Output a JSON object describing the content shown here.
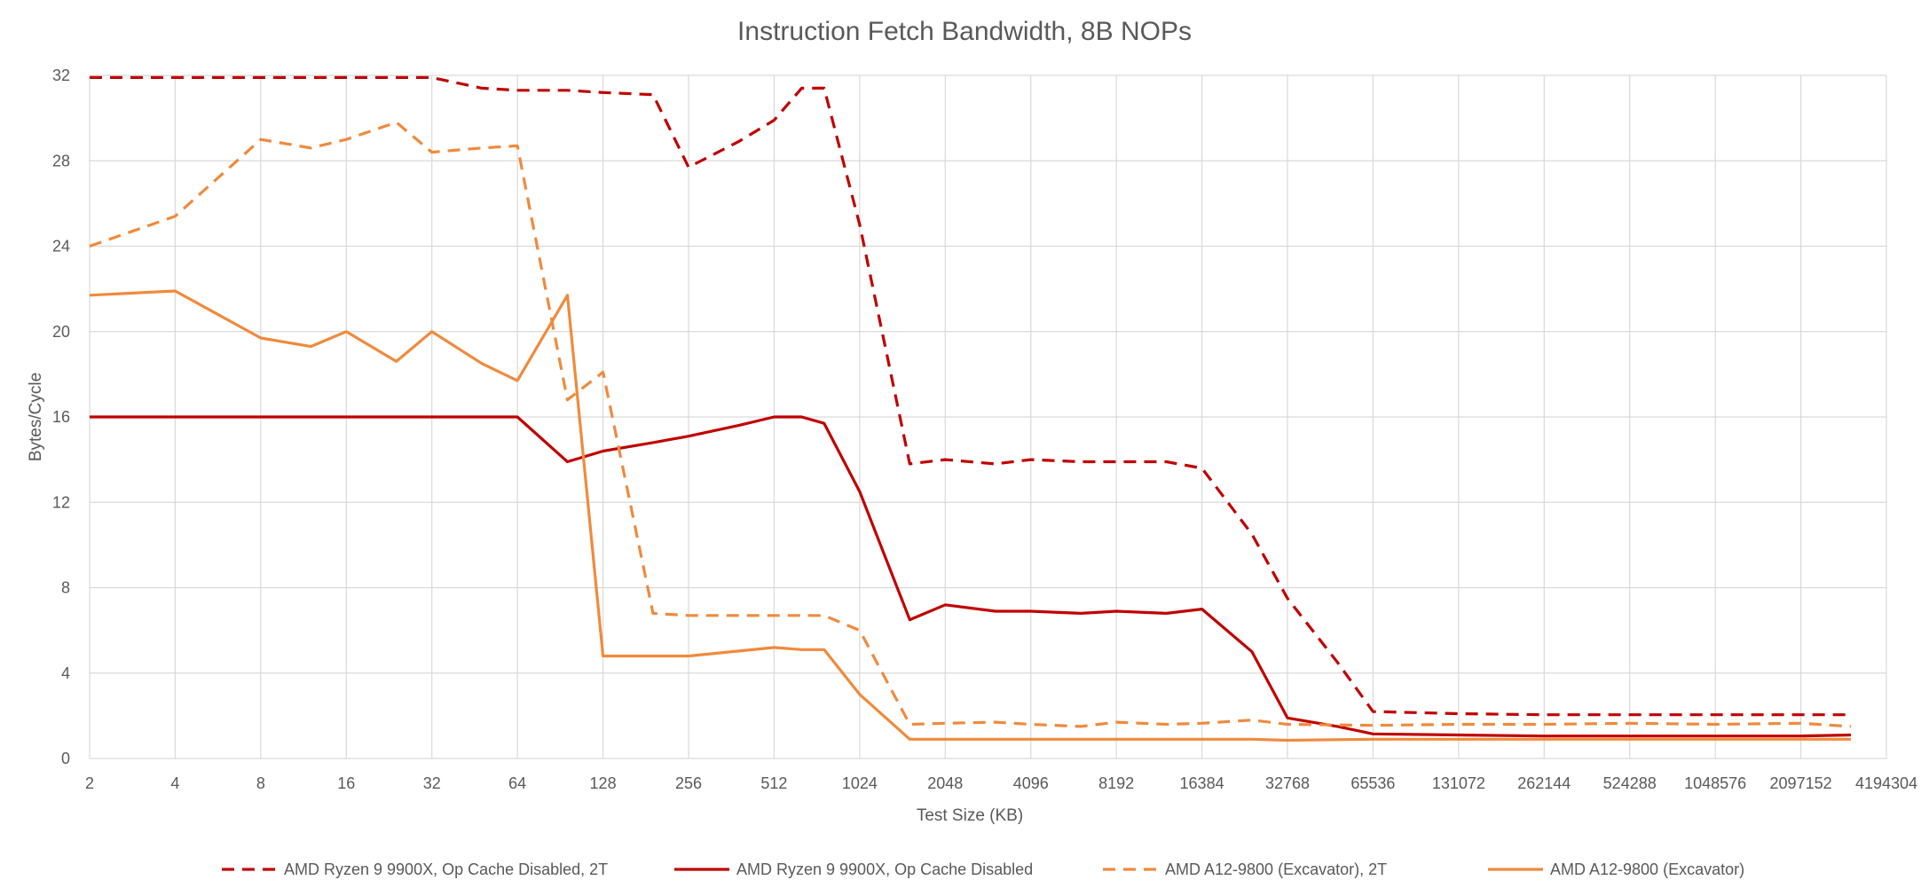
{
  "chart_data": {
    "type": "line",
    "title": "Instruction Fetch Bandwidth, 8B NOPs",
    "xlabel": "Test Size (KB)",
    "ylabel": "Bytes/Cycle",
    "x_scale": "log2",
    "xlim": [
      2,
      4194304
    ],
    "ylim": [
      0,
      32
    ],
    "y_ticks": [
      "0",
      "4",
      "8",
      "12",
      "16",
      "20",
      "24",
      "28",
      "32"
    ],
    "x_ticks": [
      "2",
      "4",
      "8",
      "16",
      "32",
      "64",
      "128",
      "256",
      "512",
      "1024",
      "2048",
      "4096",
      "8192",
      "16384",
      "32768",
      "65536",
      "131072",
      "262144",
      "524288",
      "1048576",
      "2097152",
      "4194304"
    ],
    "grid": true,
    "legend_position": "bottom",
    "series": [
      {
        "name": "AMD Ryzen 9 9900X, Op Cache Disabled, 2T",
        "color": "#c00000",
        "dash": true,
        "points": [
          [
            2,
            31.9
          ],
          [
            4,
            31.9
          ],
          [
            8,
            31.9
          ],
          [
            16,
            31.9
          ],
          [
            32,
            31.9
          ],
          [
            48,
            31.4
          ],
          [
            64,
            31.3
          ],
          [
            96,
            31.3
          ],
          [
            128,
            31.2
          ],
          [
            192,
            31.1
          ],
          [
            256,
            27.7
          ],
          [
            384,
            28.9
          ],
          [
            512,
            29.9
          ],
          [
            640,
            31.4
          ],
          [
            768,
            31.4
          ],
          [
            1024,
            25
          ],
          [
            1536,
            13.8
          ],
          [
            2048,
            14.0
          ],
          [
            3072,
            13.8
          ],
          [
            4096,
            14.0
          ],
          [
            6144,
            13.9
          ],
          [
            8192,
            13.9
          ],
          [
            12288,
            13.9
          ],
          [
            16384,
            13.6
          ],
          [
            24576,
            10.5
          ],
          [
            32768,
            7.5
          ],
          [
            49152,
            4.5
          ],
          [
            65536,
            2.2
          ],
          [
            131072,
            2.1
          ],
          [
            262144,
            2.05
          ],
          [
            524288,
            2.05
          ],
          [
            1048576,
            2.05
          ],
          [
            2097152,
            2.05
          ],
          [
            3145728,
            2.05
          ]
        ]
      },
      {
        "name": "AMD Ryzen 9 9900X, Op Cache Disabled",
        "color": "#c00000",
        "dash": false,
        "points": [
          [
            2,
            16
          ],
          [
            4,
            16
          ],
          [
            8,
            16
          ],
          [
            16,
            16
          ],
          [
            32,
            16
          ],
          [
            64,
            16
          ],
          [
            96,
            13.9
          ],
          [
            128,
            14.4
          ],
          [
            192,
            14.8
          ],
          [
            256,
            15.1
          ],
          [
            384,
            15.6
          ],
          [
            512,
            16
          ],
          [
            640,
            16
          ],
          [
            768,
            15.7
          ],
          [
            1024,
            12.5
          ],
          [
            1536,
            6.5
          ],
          [
            2048,
            7.2
          ],
          [
            3072,
            6.9
          ],
          [
            4096,
            6.9
          ],
          [
            6144,
            6.8
          ],
          [
            8192,
            6.9
          ],
          [
            12288,
            6.8
          ],
          [
            16384,
            7.0
          ],
          [
            24576,
            5.0
          ],
          [
            32768,
            1.9
          ],
          [
            49152,
            1.5
          ],
          [
            65536,
            1.15
          ],
          [
            131072,
            1.1
          ],
          [
            262144,
            1.05
          ],
          [
            524288,
            1.05
          ],
          [
            1048576,
            1.05
          ],
          [
            2097152,
            1.05
          ],
          [
            3145728,
            1.1
          ]
        ]
      },
      {
        "name": "AMD A12-9800 (Excavator), 2T",
        "color": "#f08a3c",
        "dash": true,
        "points": [
          [
            2,
            24.0
          ],
          [
            4,
            25.4
          ],
          [
            8,
            29.0
          ],
          [
            12,
            28.6
          ],
          [
            16,
            29.0
          ],
          [
            24,
            29.8
          ],
          [
            32,
            28.4
          ],
          [
            48,
            28.6
          ],
          [
            64,
            28.7
          ],
          [
            96,
            16.8
          ],
          [
            128,
            18.1
          ],
          [
            192,
            6.8
          ],
          [
            256,
            6.7
          ],
          [
            512,
            6.7
          ],
          [
            768,
            6.7
          ],
          [
            1024,
            6.0
          ],
          [
            1536,
            1.6
          ],
          [
            2048,
            1.65
          ],
          [
            3072,
            1.7
          ],
          [
            4096,
            1.6
          ],
          [
            6144,
            1.5
          ],
          [
            8192,
            1.7
          ],
          [
            12288,
            1.6
          ],
          [
            16384,
            1.65
          ],
          [
            24576,
            1.8
          ],
          [
            32768,
            1.6
          ],
          [
            65536,
            1.55
          ],
          [
            131072,
            1.6
          ],
          [
            262144,
            1.6
          ],
          [
            524288,
            1.65
          ],
          [
            1048576,
            1.6
          ],
          [
            2097152,
            1.65
          ],
          [
            3145728,
            1.5
          ]
        ]
      },
      {
        "name": "AMD A12-9800 (Excavator)",
        "color": "#f08a3c",
        "dash": false,
        "points": [
          [
            2,
            21.7
          ],
          [
            4,
            21.9
          ],
          [
            8,
            19.7
          ],
          [
            12,
            19.3
          ],
          [
            16,
            20.0
          ],
          [
            24,
            18.6
          ],
          [
            32,
            20.0
          ],
          [
            48,
            18.5
          ],
          [
            64,
            17.7
          ],
          [
            96,
            21.7
          ],
          [
            128,
            4.8
          ],
          [
            256,
            4.8
          ],
          [
            512,
            5.2
          ],
          [
            640,
            5.1
          ],
          [
            768,
            5.1
          ],
          [
            1024,
            3.0
          ],
          [
            1536,
            0.9
          ],
          [
            2048,
            0.9
          ],
          [
            4096,
            0.9
          ],
          [
            8192,
            0.9
          ],
          [
            16384,
            0.9
          ],
          [
            24576,
            0.9
          ],
          [
            32768,
            0.85
          ],
          [
            65536,
            0.9
          ],
          [
            131072,
            0.9
          ],
          [
            262144,
            0.9
          ],
          [
            524288,
            0.9
          ],
          [
            1048576,
            0.9
          ],
          [
            2097152,
            0.9
          ],
          [
            3145728,
            0.9
          ]
        ]
      }
    ]
  }
}
